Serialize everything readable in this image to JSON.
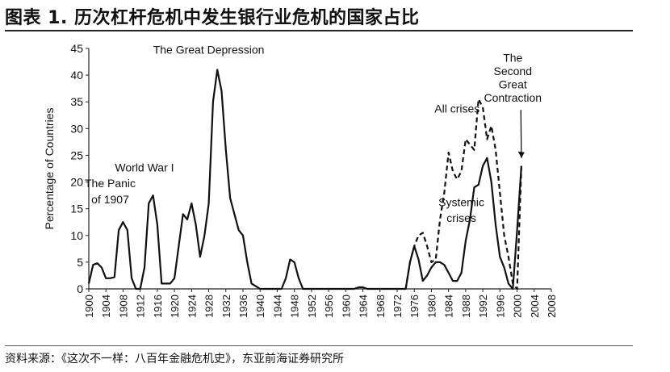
{
  "figure": {
    "title": "图表 1.  历次杠杆危机中发生银行业危机的国家占比",
    "source": "资料来源：《这次不一样：八百年金融危机史》，东亚前海证券研究所"
  },
  "chart_data": {
    "type": "line",
    "ylabel": "Percentage of Countries",
    "xlabel": "",
    "ylim": [
      0,
      45
    ],
    "xlim": [
      1900,
      2008
    ],
    "y_ticks": [
      0,
      5,
      10,
      15,
      20,
      25,
      30,
      35,
      40,
      45
    ],
    "x_ticks": [
      1900,
      1904,
      1908,
      1912,
      1916,
      1920,
      1924,
      1928,
      1932,
      1936,
      1940,
      1944,
      1948,
      1952,
      1956,
      1960,
      1964,
      1968,
      1972,
      1976,
      1980,
      1984,
      1988,
      1992,
      1996,
      2000,
      2004,
      2008
    ],
    "grid": false,
    "legend": "none",
    "series": [
      {
        "name": "Systemic crises",
        "style": "solid",
        "points": [
          [
            1900,
            1
          ],
          [
            1901,
            4.5
          ],
          [
            1902,
            4.8
          ],
          [
            1903,
            4
          ],
          [
            1904,
            2
          ],
          [
            1905,
            2
          ],
          [
            1906,
            2.2
          ],
          [
            1907,
            11
          ],
          [
            1908,
            12.5
          ],
          [
            1909,
            11
          ],
          [
            1910,
            2
          ],
          [
            1911,
            0
          ],
          [
            1912,
            0
          ],
          [
            1913,
            4
          ],
          [
            1914,
            16
          ],
          [
            1915,
            17.5
          ],
          [
            1916,
            12
          ],
          [
            1917,
            1
          ],
          [
            1918,
            1
          ],
          [
            1919,
            1
          ],
          [
            1920,
            2
          ],
          [
            1921,
            8
          ],
          [
            1922,
            14
          ],
          [
            1923,
            13
          ],
          [
            1924,
            16
          ],
          [
            1925,
            12
          ],
          [
            1926,
            6
          ],
          [
            1927,
            10
          ],
          [
            1928,
            16
          ],
          [
            1929,
            35
          ],
          [
            1930,
            41
          ],
          [
            1931,
            37
          ],
          [
            1932,
            26
          ],
          [
            1933,
            17
          ],
          [
            1934,
            14
          ],
          [
            1935,
            11
          ],
          [
            1936,
            10
          ],
          [
            1937,
            5
          ],
          [
            1938,
            1
          ],
          [
            1939,
            0.5
          ],
          [
            1940,
            0
          ],
          [
            1945,
            0
          ],
          [
            1946,
            2
          ],
          [
            1947,
            5.5
          ],
          [
            1948,
            5
          ],
          [
            1949,
            2
          ],
          [
            1950,
            0
          ],
          [
            1960,
            0
          ],
          [
            1962,
            0
          ],
          [
            1963,
            0.3
          ],
          [
            1964,
            0.3
          ],
          [
            1965,
            0
          ],
          [
            1974,
            0
          ],
          [
            1975,
            5
          ],
          [
            1976,
            8
          ],
          [
            1977,
            5.5
          ],
          [
            1978,
            1.5
          ],
          [
            1979,
            2.5
          ],
          [
            1980,
            4
          ],
          [
            1981,
            5
          ],
          [
            1982,
            5
          ],
          [
            1983,
            4.5
          ],
          [
            1984,
            3
          ],
          [
            1985,
            1.5
          ],
          [
            1986,
            1.5
          ],
          [
            1987,
            3
          ],
          [
            1988,
            9
          ],
          [
            1989,
            13
          ],
          [
            1990,
            19
          ],
          [
            1991,
            19.5
          ],
          [
            1992,
            23
          ],
          [
            1993,
            24.5
          ],
          [
            1994,
            20
          ],
          [
            1995,
            12
          ],
          [
            1996,
            6
          ],
          [
            1997,
            4
          ],
          [
            1998,
            1
          ],
          [
            1999,
            0
          ],
          [
            2000,
            11
          ],
          [
            2001,
            23
          ]
        ]
      },
      {
        "name": "All crises",
        "style": "dashed",
        "points": [
          [
            1974,
            0
          ],
          [
            1975,
            5
          ],
          [
            1976,
            8
          ],
          [
            1977,
            10
          ],
          [
            1978,
            10.5
          ],
          [
            1979,
            8
          ],
          [
            1980,
            5
          ],
          [
            1981,
            5.5
          ],
          [
            1982,
            13
          ],
          [
            1983,
            18
          ],
          [
            1984,
            25.5
          ],
          [
            1985,
            22
          ],
          [
            1986,
            20.5
          ],
          [
            1987,
            22
          ],
          [
            1988,
            28
          ],
          [
            1989,
            27
          ],
          [
            1990,
            26
          ],
          [
            1991,
            35.5
          ],
          [
            1992,
            34
          ],
          [
            1993,
            28
          ],
          [
            1994,
            30.5
          ],
          [
            1995,
            26
          ],
          [
            1996,
            18
          ],
          [
            1997,
            10
          ],
          [
            1998,
            6
          ],
          [
            1999,
            1
          ],
          [
            2000,
            0
          ],
          [
            2001,
            23
          ]
        ]
      }
    ],
    "annotations": [
      {
        "text": "The Panic",
        "x": 1905,
        "y": 19
      },
      {
        "text": "of 1907",
        "x": 1905,
        "y": 16
      },
      {
        "text": "World War I",
        "x": 1913,
        "y": 22
      },
      {
        "text": "The Great Depression",
        "x": 1928,
        "y": 44
      },
      {
        "text": "All crises",
        "x": 1986,
        "y": 33
      },
      {
        "text": "Systemic",
        "x": 1987,
        "y": 15.5
      },
      {
        "text": "crises",
        "x": 1987,
        "y": 12.5
      },
      {
        "text": "The",
        "x": 1999,
        "y": 42.5
      },
      {
        "text": "Second",
        "x": 1999,
        "y": 40
      },
      {
        "text": "Great",
        "x": 1999,
        "y": 37.5
      },
      {
        "text": "Contraction",
        "x": 1999,
        "y": 35
      }
    ]
  }
}
